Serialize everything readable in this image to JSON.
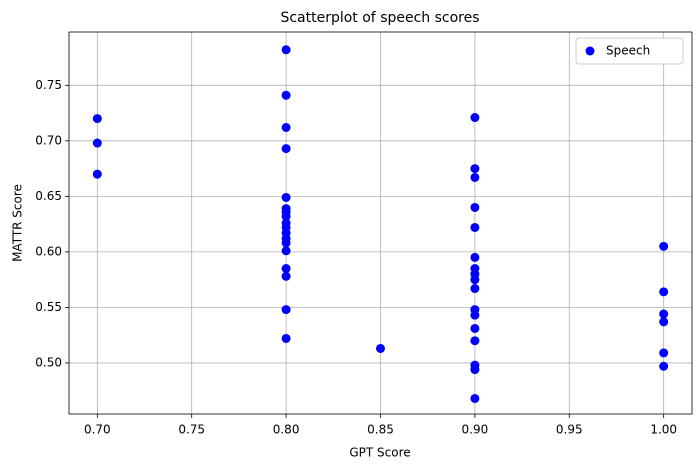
{
  "chart_data": {
    "type": "scatter",
    "title": "Scatterplot of speech scores",
    "xlabel": "GPT Score",
    "ylabel": "MATTR Score",
    "x": [
      0.7,
      0.7,
      0.7,
      0.8,
      0.8,
      0.8,
      0.8,
      0.8,
      0.8,
      0.8,
      0.8,
      0.8,
      0.8,
      0.8,
      0.8,
      0.8,
      0.8,
      0.8,
      0.8,
      0.8,
      0.8,
      0.85,
      0.9,
      0.9,
      0.9,
      0.9,
      0.9,
      0.9,
      0.9,
      0.9,
      0.9,
      0.9,
      0.9,
      0.9,
      0.9,
      0.9,
      0.9,
      0.9,
      0.9,
      1.0,
      1.0,
      1.0,
      1.0,
      1.0,
      1.0
    ],
    "series": [
      {
        "name": "Speech",
        "color": "#0000ff",
        "values": [
          0.72,
          0.698,
          0.67,
          0.782,
          0.741,
          0.712,
          0.693,
          0.649,
          0.639,
          0.636,
          0.632,
          0.626,
          0.622,
          0.617,
          0.612,
          0.608,
          0.601,
          0.585,
          0.578,
          0.548,
          0.522,
          0.513,
          0.721,
          0.675,
          0.667,
          0.64,
          0.622,
          0.595,
          0.585,
          0.58,
          0.575,
          0.567,
          0.548,
          0.543,
          0.531,
          0.52,
          0.498,
          0.494,
          0.468,
          0.605,
          0.564,
          0.544,
          0.537,
          0.509,
          0.497
        ]
      }
    ],
    "xlim": [
      0.685,
      1.015
    ],
    "ylim": [
      0.454,
      0.798
    ],
    "xticks": [
      {
        "value": 0.7,
        "label": "0.70"
      },
      {
        "value": 0.75,
        "label": "0.75"
      },
      {
        "value": 0.8,
        "label": "0.80"
      },
      {
        "value": 0.85,
        "label": "0.85"
      },
      {
        "value": 0.9,
        "label": "0.90"
      },
      {
        "value": 0.95,
        "label": "0.95"
      },
      {
        "value": 1.0,
        "label": "1.00"
      }
    ],
    "yticks": [
      {
        "value": 0.5,
        "label": "0.50"
      },
      {
        "value": 0.55,
        "label": "0.55"
      },
      {
        "value": 0.6,
        "label": "0.60"
      },
      {
        "value": 0.65,
        "label": "0.65"
      },
      {
        "value": 0.7,
        "label": "0.70"
      },
      {
        "value": 0.75,
        "label": "0.75"
      }
    ],
    "grid": true,
    "legend": "upper right"
  }
}
